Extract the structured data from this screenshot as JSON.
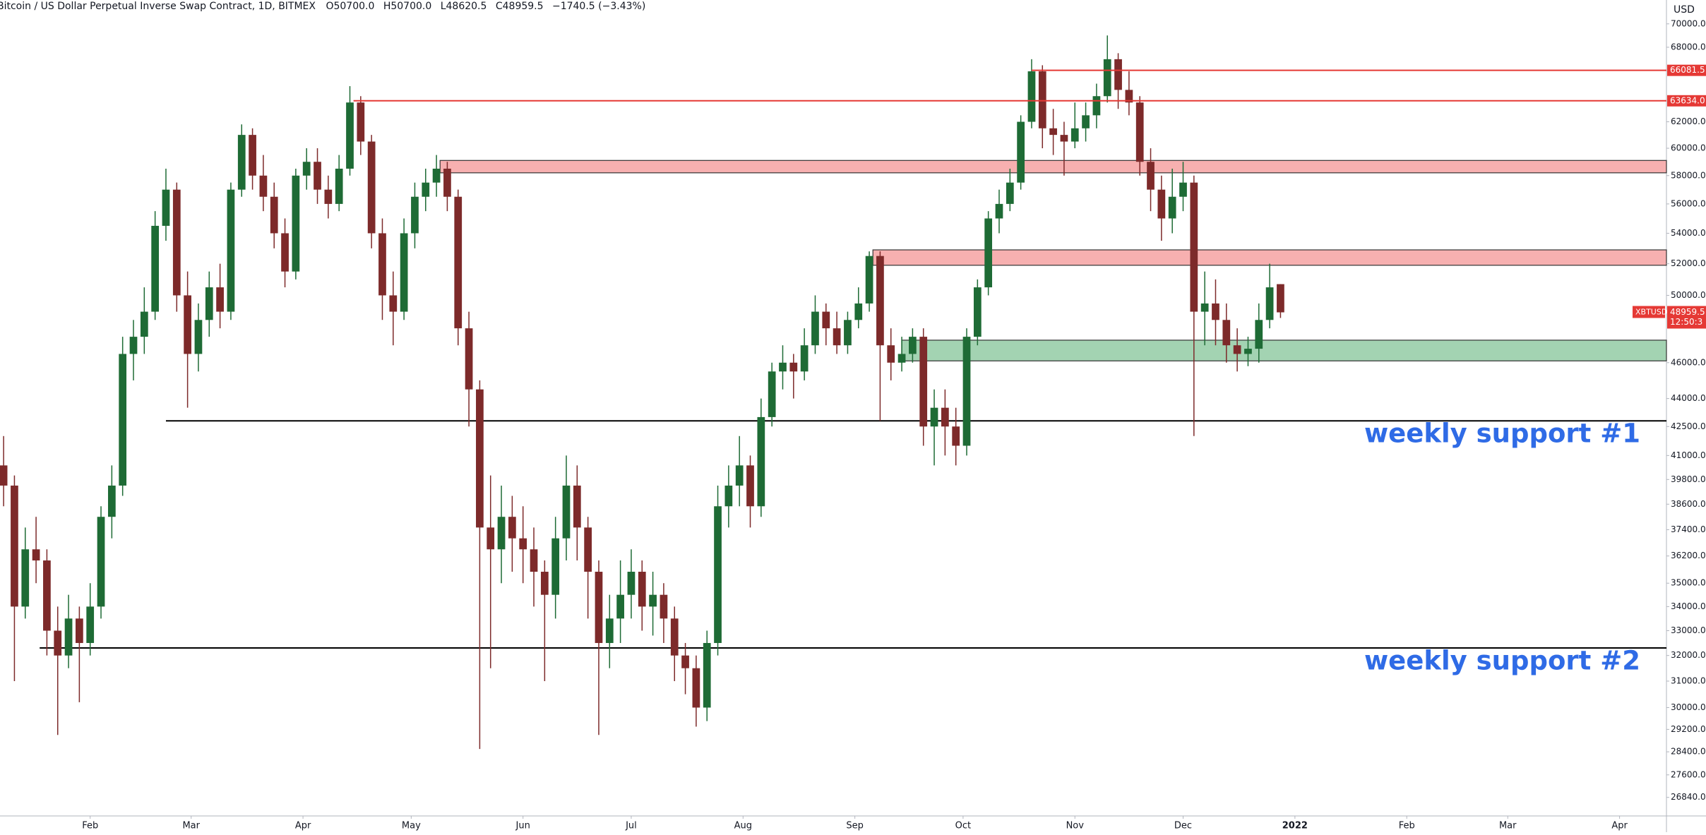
{
  "header": {
    "title": "Bitcoin / US Dollar Perpetual Inverse Swap Contract, 1D, BITMEX",
    "open": "O50700.0",
    "high": "H50700.0",
    "low": "L48620.5",
    "close": "C48959.5",
    "change": "−1740.5 (−3.43%)"
  },
  "chart_data": {
    "type": "candlestick",
    "currency": "USD",
    "log_scale": true,
    "up_color": "#1e6b35",
    "down_color": "#7d2a2a",
    "x": [
      7,
      10,
      13,
      16,
      19,
      22,
      25,
      28,
      31,
      34,
      37,
      40,
      43,
      46,
      49,
      52,
      55,
      58,
      61,
      64,
      67,
      70,
      73,
      76,
      79,
      82,
      85,
      88,
      91,
      94,
      97,
      100,
      103,
      106,
      109,
      112,
      115,
      118,
      121,
      124,
      127,
      130,
      133,
      136,
      139,
      142,
      145,
      148,
      151,
      154,
      157,
      160,
      163,
      166,
      169,
      172,
      175,
      178,
      181,
      184,
      187,
      190,
      193,
      196,
      199,
      202,
      205,
      208,
      211,
      214,
      217,
      220,
      223,
      226,
      229,
      232,
      235,
      238,
      241,
      244,
      247,
      250,
      253,
      256,
      259,
      262,
      265,
      268,
      271,
      274,
      277,
      280,
      283,
      286,
      289,
      292,
      295,
      298,
      301,
      304,
      307,
      310,
      313,
      316,
      319,
      322,
      325,
      328,
      331,
      334,
      337,
      340,
      343,
      346,
      349,
      352,
      355,
      358,
      361
    ],
    "open": [
      40500,
      39500,
      34000,
      36500,
      36000,
      33000,
      32000,
      33500,
      32500,
      34000,
      38000,
      39500,
      46500,
      47500,
      49000,
      54500,
      57000,
      50000,
      46500,
      48500,
      50500,
      49000,
      57000,
      61000,
      58000,
      56500,
      54000,
      51500,
      58000,
      59000,
      57000,
      56000,
      58500,
      63500,
      60500,
      54000,
      50000,
      49000,
      54000,
      56500,
      57500,
      58500,
      56500,
      48000,
      44500,
      37500,
      36500,
      38000,
      37000,
      36500,
      35500,
      34500,
      37000,
      39500,
      37500,
      35500,
      32500,
      33500,
      34500,
      35500,
      34000,
      34500,
      33500,
      32000,
      31500,
      30000,
      32500,
      38500,
      39500,
      40500,
      38500,
      43000,
      45500,
      46000,
      45500,
      47000,
      49000,
      48000,
      47000,
      48500,
      49500,
      52500,
      47000,
      46000,
      46500,
      47500,
      42500,
      43500,
      42500,
      41500,
      47500,
      50500,
      55000,
      56000,
      57500,
      62000,
      66000,
      61500,
      61000,
      60500,
      61500,
      62500,
      64000,
      67000,
      64500,
      63500,
      59000,
      57000,
      55000,
      56500,
      57500,
      49000,
      49500,
      48500,
      47000,
      46500,
      46800,
      48500,
      50700
    ],
    "high": [
      42000,
      40000,
      37500,
      38000,
      36500,
      34000,
      34500,
      34000,
      35000,
      38500,
      40500,
      47500,
      48500,
      50500,
      55500,
      58500,
      57500,
      51500,
      49500,
      51500,
      52000,
      57500,
      61800,
      61500,
      59500,
      57500,
      55000,
      58500,
      60000,
      60000,
      58000,
      59500,
      64800,
      64000,
      61000,
      55000,
      51500,
      55000,
      57500,
      58500,
      59500,
      59000,
      57000,
      49000,
      45000,
      40000,
      39500,
      39000,
      38500,
      37500,
      36000,
      38000,
      41000,
      40500,
      38000,
      36000,
      34500,
      36000,
      36500,
      36000,
      35500,
      35000,
      34000,
      32500,
      32000,
      33000,
      39500,
      40500,
      42000,
      41000,
      44000,
      46000,
      47000,
      46500,
      48000,
      50000,
      49500,
      49000,
      49000,
      50500,
      52800,
      52800,
      48000,
      47500,
      48000,
      48000,
      44500,
      44500,
      43500,
      48000,
      51000,
      55500,
      57000,
      58500,
      62500,
      67000,
      66500,
      63000,
      62000,
      63500,
      63500,
      65000,
      69000,
      67500,
      66000,
      64000,
      60000,
      58000,
      58500,
      59000,
      58000,
      51500,
      51000,
      49500,
      48000,
      47500,
      49500,
      52000,
      50700
    ],
    "low": [
      38500,
      31000,
      33500,
      35000,
      32000,
      29000,
      31500,
      30200,
      32000,
      33500,
      37000,
      39000,
      45000,
      46500,
      48500,
      53500,
      49000,
      43500,
      45500,
      47500,
      48000,
      48500,
      56500,
      57000,
      55500,
      53000,
      50500,
      51000,
      57000,
      56000,
      55000,
      55500,
      58000,
      59500,
      53000,
      48500,
      47000,
      48500,
      53000,
      55500,
      56500,
      55500,
      47000,
      42500,
      28500,
      31500,
      35000,
      35500,
      35000,
      34000,
      31000,
      33500,
      36000,
      36000,
      33500,
      29000,
      31500,
      32500,
      33500,
      33000,
      32800,
      32500,
      31000,
      30500,
      29300,
      29500,
      32000,
      37500,
      38500,
      37500,
      38000,
      42500,
      44500,
      44000,
      45000,
      46500,
      47000,
      46500,
      46500,
      48000,
      49000,
      42800,
      45000,
      45500,
      46000,
      41500,
      40500,
      41000,
      40500,
      41000,
      47000,
      50000,
      54000,
      55500,
      57000,
      61500,
      60000,
      59500,
      58000,
      60000,
      60500,
      61500,
      63500,
      63000,
      62500,
      58000,
      55500,
      53500,
      54000,
      55500,
      42000,
      47000,
      47000,
      46000,
      45500,
      45800,
      46000,
      48000,
      48620.5
    ],
    "close": [
      39500,
      34000,
      36500,
      36000,
      33000,
      32000,
      33500,
      32500,
      34000,
      38000,
      39500,
      46500,
      47500,
      49000,
      54500,
      57000,
      50000,
      46500,
      48500,
      50500,
      49000,
      57000,
      61000,
      58000,
      56500,
      54000,
      51500,
      58000,
      59000,
      57000,
      56000,
      58500,
      63500,
      60500,
      54000,
      50000,
      49000,
      54000,
      56500,
      57500,
      58500,
      56500,
      48000,
      44500,
      37500,
      36500,
      38000,
      37000,
      36500,
      35500,
      34500,
      37000,
      39500,
      37500,
      35500,
      32500,
      33500,
      34500,
      35500,
      34000,
      34500,
      33500,
      32000,
      31500,
      30000,
      32500,
      38500,
      39500,
      40500,
      38500,
      43000,
      45500,
      46000,
      45500,
      47000,
      49000,
      48000,
      47000,
      48500,
      49500,
      52500,
      47000,
      46000,
      46500,
      47500,
      42500,
      43500,
      42500,
      41500,
      47500,
      50500,
      55000,
      56000,
      57500,
      62000,
      66000,
      61500,
      61000,
      60500,
      61500,
      62500,
      64000,
      67000,
      64500,
      63500,
      59000,
      57000,
      55000,
      56500,
      57500,
      49000,
      49500,
      48500,
      47000,
      46500,
      46800,
      48500,
      50500,
      48959.5
    ],
    "xlim": [
      6,
      468
    ],
    "xticks": [
      {
        "value": 31,
        "label": "Feb"
      },
      {
        "value": 59,
        "label": "Mar"
      },
      {
        "value": 90,
        "label": "Apr"
      },
      {
        "value": 120,
        "label": "May"
      },
      {
        "value": 151,
        "label": "Jun"
      },
      {
        "value": 181,
        "label": "Jul"
      },
      {
        "value": 212,
        "label": "Aug"
      },
      {
        "value": 243,
        "label": "Sep"
      },
      {
        "value": 273,
        "label": "Oct"
      },
      {
        "value": 304,
        "label": "Nov"
      },
      {
        "value": 334,
        "label": "Dec"
      },
      {
        "value": 365,
        "label": "2022"
      },
      {
        "value": 396,
        "label": "Feb"
      },
      {
        "value": 424,
        "label": "Mar"
      },
      {
        "value": 455,
        "label": "Apr"
      }
    ],
    "ylim": [
      26230,
      72100
    ],
    "yticks": [
      {
        "value": 70000,
        "label": "70000.0"
      },
      {
        "value": 68000,
        "label": "68000.0"
      },
      {
        "value": 62000,
        "label": "62000.0"
      },
      {
        "value": 60000,
        "label": "60000.0"
      },
      {
        "value": 58000,
        "label": "58000.0"
      },
      {
        "value": 56000,
        "label": "56000.0"
      },
      {
        "value": 54000,
        "label": "54000.0"
      },
      {
        "value": 52000,
        "label": "52000.0"
      },
      {
        "value": 50000,
        "label": "50000.0"
      },
      {
        "value": 46000,
        "label": "46000.0"
      },
      {
        "value": 44000,
        "label": "44000.0"
      },
      {
        "value": 42500,
        "label": "42500.0"
      },
      {
        "value": 41000,
        "label": "41000.0"
      },
      {
        "value": 39800,
        "label": "39800.0"
      },
      {
        "value": 38600,
        "label": "38600.0"
      },
      {
        "value": 37400,
        "label": "37400.0"
      },
      {
        "value": 36200,
        "label": "36200.0"
      },
      {
        "value": 35000,
        "label": "35000.0"
      },
      {
        "value": 34000,
        "label": "34000.0"
      },
      {
        "value": 33000,
        "label": "33000.0"
      },
      {
        "value": 32000,
        "label": "32000.0"
      },
      {
        "value": 31000,
        "label": "31000.0"
      },
      {
        "value": 30000,
        "label": "30000.0"
      },
      {
        "value": 29200,
        "label": "29200.0"
      },
      {
        "value": 28400,
        "label": "28400.0"
      },
      {
        "value": 27600,
        "label": "27600.0"
      },
      {
        "value": 26840,
        "label": "26840.0"
      }
    ],
    "levels": [
      {
        "price": 66081.5,
        "label": "66081.5",
        "from": 292,
        "color": "#e53935"
      },
      {
        "price": 63634,
        "label": "63634.0",
        "from": 104,
        "color": "#e53935"
      }
    ],
    "zones": [
      {
        "low": 58200,
        "high": 59100,
        "from": 128,
        "color": "#f7b0b0"
      },
      {
        "low": 51900,
        "high": 52900,
        "from": 248,
        "color": "#f7b0b0"
      },
      {
        "low": 46100,
        "high": 47300,
        "from": 256,
        "color": "#a3d3b2"
      }
    ],
    "supports": [
      {
        "price": 42800,
        "from": 52,
        "label": "weekly support #1"
      },
      {
        "price": 32300,
        "from": 17,
        "label": "weekly support #2"
      }
    ],
    "symbol_tag": "XBTUSD",
    "countdown": "12:50:3"
  }
}
